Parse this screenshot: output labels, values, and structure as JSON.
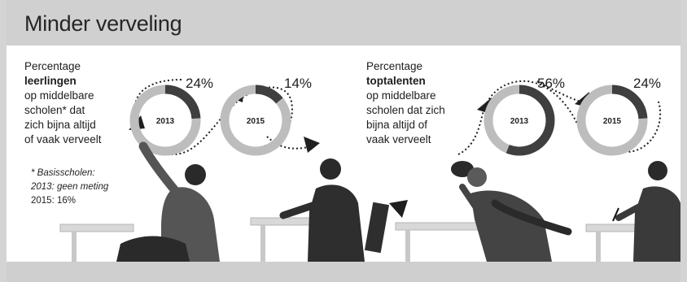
{
  "title": "Minder verveling",
  "left": {
    "desc_line1": "Percentage",
    "desc_bold": "leerlingen",
    "desc_rest": [
      "op middelbare",
      "scholen* dat",
      "zich bijna altijd",
      "of vaak verveelt"
    ],
    "footnote_title": "* Basisscholen:",
    "footnote_line1": "2013: geen meting",
    "footnote_line2": "2015: 16%",
    "rings": [
      {
        "year": "2013",
        "percent_label": "24%",
        "value": 24
      },
      {
        "year": "2015",
        "percent_label": "14%",
        "value": 14
      }
    ]
  },
  "right": {
    "desc_line1": "Percentage",
    "desc_bold": "toptalenten",
    "desc_rest": [
      "op middelbare",
      "scholen dat zich",
      "bijna altijd of",
      "vaak verveelt"
    ],
    "rings": [
      {
        "year": "2013",
        "percent_label": "56%",
        "value": 56
      },
      {
        "year": "2015",
        "percent_label": "24%",
        "value": 24
      }
    ]
  },
  "colors": {
    "ring_filled": "#3f3f3f",
    "ring_empty": "#bdbdbd",
    "figure_dark": "#2a2a2a",
    "figure_mid": "#6a6a6a",
    "desk": "#d8d8d8"
  }
}
